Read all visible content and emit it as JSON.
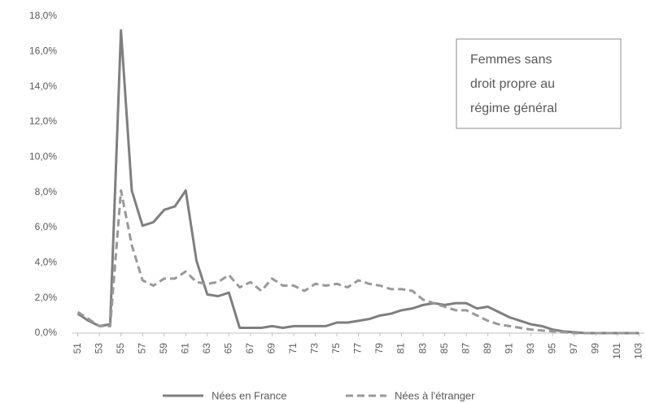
{
  "chart_data": {
    "type": "line",
    "x": [
      51,
      52,
      53,
      54,
      55,
      56,
      57,
      58,
      59,
      60,
      61,
      62,
      63,
      64,
      65,
      66,
      67,
      68,
      69,
      70,
      71,
      72,
      73,
      74,
      75,
      76,
      77,
      78,
      79,
      80,
      81,
      82,
      83,
      84,
      85,
      86,
      87,
      88,
      89,
      90,
      91,
      92,
      93,
      94,
      95,
      96,
      97,
      98,
      99,
      100,
      101,
      102,
      103
    ],
    "xlim": [
      50.5,
      103.5
    ],
    "xticks": [
      51,
      53,
      55,
      57,
      59,
      61,
      63,
      65,
      67,
      69,
      71,
      73,
      75,
      77,
      79,
      81,
      83,
      85,
      87,
      89,
      91,
      93,
      95,
      97,
      99,
      101,
      103
    ],
    "ylim": [
      0,
      18
    ],
    "yticks": [
      {
        "value": 0,
        "label": "0,0%"
      },
      {
        "value": 2,
        "label": "2,0%"
      },
      {
        "value": 4,
        "label": "4,0%"
      },
      {
        "value": 6,
        "label": "6,0%"
      },
      {
        "value": 8,
        "label": "8,0%"
      },
      {
        "value": 10,
        "label": "10,0%"
      },
      {
        "value": 12,
        "label": "12,0%"
      },
      {
        "value": 14,
        "label": "14,0%"
      },
      {
        "value": 16,
        "label": "16,0%"
      },
      {
        "value": 18,
        "label": "18,0%"
      }
    ],
    "grid": false,
    "annotation": [
      "Femmes sans",
      "droit propre au",
      "régime général"
    ],
    "series": [
      {
        "name": "Nées en France",
        "color": "#7f7f7f",
        "dashed": false,
        "values": [
          1.1,
          0.7,
          0.4,
          0.5,
          17.2,
          8.1,
          6.1,
          6.3,
          7.0,
          7.2,
          8.1,
          4.1,
          2.2,
          2.1,
          2.3,
          0.3,
          0.3,
          0.3,
          0.4,
          0.3,
          0.4,
          0.4,
          0.4,
          0.4,
          0.6,
          0.6,
          0.7,
          0.8,
          1.0,
          1.1,
          1.3,
          1.4,
          1.6,
          1.7,
          1.6,
          1.7,
          1.7,
          1.4,
          1.5,
          1.2,
          0.9,
          0.7,
          0.5,
          0.4,
          0.2,
          0.1,
          0.05,
          0,
          0,
          0,
          0,
          0,
          0
        ]
      },
      {
        "name": "Nées à l'étranger",
        "color": "#999999",
        "dashed": true,
        "values": [
          1.2,
          0.8,
          0.4,
          0.4,
          8.1,
          5.0,
          3.0,
          2.7,
          3.1,
          3.1,
          3.5,
          2.9,
          2.8,
          2.9,
          3.3,
          2.6,
          2.9,
          2.4,
          3.1,
          2.7,
          2.7,
          2.4,
          2.8,
          2.7,
          2.8,
          2.6,
          3.0,
          2.8,
          2.7,
          2.5,
          2.5,
          2.4,
          1.9,
          1.7,
          1.5,
          1.3,
          1.3,
          1.0,
          0.7,
          0.5,
          0.4,
          0.3,
          0.2,
          0.15,
          0.1,
          0.05,
          0,
          0,
          0,
          0,
          0,
          0,
          0
        ]
      }
    ]
  }
}
